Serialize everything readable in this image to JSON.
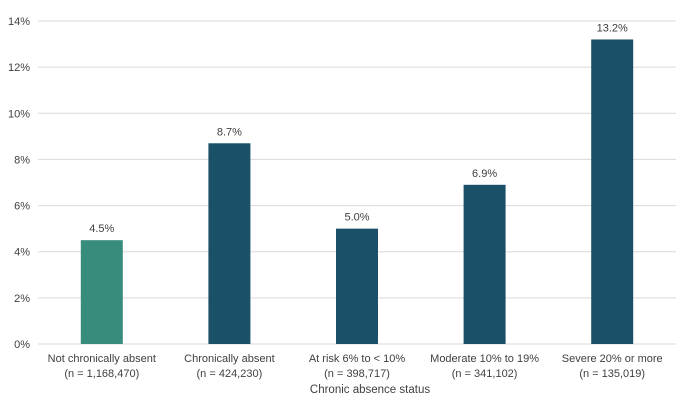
{
  "chart_data": {
    "type": "bar",
    "title": "",
    "xlabel": "Chronic absence status",
    "ylabel": "",
    "ylim": [
      0,
      14
    ],
    "yticks": [
      "0%",
      "2%",
      "4%",
      "6%",
      "8%",
      "10%",
      "12%",
      "14%"
    ],
    "grid": true,
    "categories": [
      "Not chronically absent",
      "Chronically absent",
      "At risk 6% to < 10%",
      "Moderate 10% to 19%",
      "Severe 20% or more"
    ],
    "sample_sizes": [
      "(n  =  1,168,470)",
      "(n  =  424,230)",
      "(n  =  398,717)",
      "(n  =  341,102)",
      "(n  =  135,019)"
    ],
    "values": [
      4.5,
      8.7,
      5.0,
      6.9,
      13.2
    ],
    "value_labels": [
      "4.5%",
      "8.7%",
      "5.0%",
      "6.9%",
      "13.2%"
    ],
    "colors": [
      "#378c7c",
      "#1b5168",
      "#1b5168",
      "#1b5168",
      "#1b5168"
    ],
    "gridline_color": "#d9d9d9"
  }
}
